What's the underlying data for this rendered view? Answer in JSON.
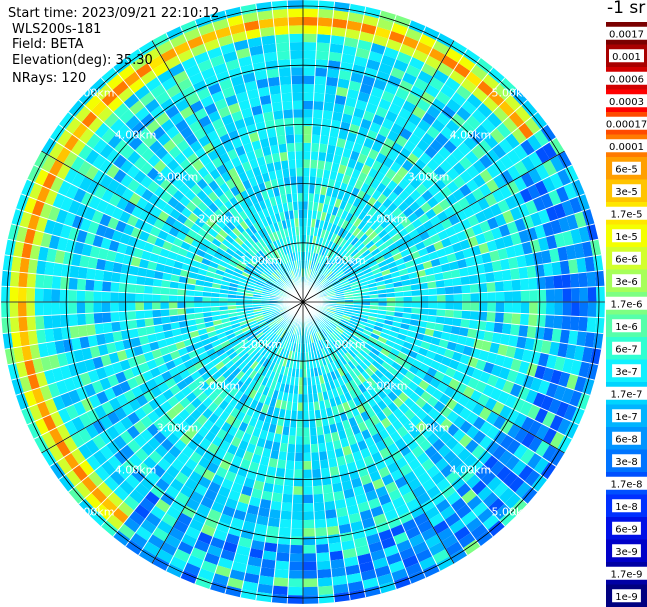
{
  "info": {
    "start_time": "Start time: 2023/09/21 22:10:12",
    "instrument": "WLS200s-181",
    "field": "Field: BETA",
    "elevation": "Elevation(deg): 35.30",
    "nrays": "NRays: 120"
  },
  "colorbar": {
    "title": "-1 sr",
    "levels": [
      {
        "label": "0.0017",
        "color": "#7a0000"
      },
      {
        "label": "0.001",
        "color": "#a80000"
      },
      {
        "label": "0.0006",
        "color": "#d20000"
      },
      {
        "label": "0.0003",
        "color": "#ff0000"
      },
      {
        "label": "0.00017",
        "color": "#ff4a00"
      },
      {
        "label": "0.0001",
        "color": "#ff7a00"
      },
      {
        "label": "6e-5",
        "color": "#ff9f00"
      },
      {
        "label": "3e-5",
        "color": "#ffc400"
      },
      {
        "label": "1.7e-5",
        "color": "#ffe600"
      },
      {
        "label": "1e-5",
        "color": "#f4ff00"
      },
      {
        "label": "6e-6",
        "color": "#d2ff2c"
      },
      {
        "label": "3e-6",
        "color": "#a6ff5a"
      },
      {
        "label": "1.7e-6",
        "color": "#7dff82"
      },
      {
        "label": "1e-6",
        "color": "#55ffaa"
      },
      {
        "label": "6e-7",
        "color": "#30ffd2"
      },
      {
        "label": "3e-7",
        "color": "#10f0ff"
      },
      {
        "label": "1.7e-7",
        "color": "#00d4ff"
      },
      {
        "label": "1e-7",
        "color": "#00b4ff"
      },
      {
        "label": "6e-8",
        "color": "#0094ff"
      },
      {
        "label": "3e-8",
        "color": "#0074ff"
      },
      {
        "label": "1.7e-8",
        "color": "#0050ff"
      },
      {
        "label": "1e-8",
        "color": "#0030ff"
      },
      {
        "label": "6e-9",
        "color": "#0010e6"
      },
      {
        "label": "3e-9",
        "color": "#0000c8"
      },
      {
        "label": "1.7e-9",
        "color": "#0000a4"
      },
      {
        "label": "1e-9",
        "color": "#000080"
      }
    ]
  },
  "chart_data": {
    "type": "heatmap",
    "projection": "polar (PPI)",
    "field": "BETA",
    "elevation_deg": 35.3,
    "n_rays": 120,
    "range_rings_km": [
      1,
      2,
      3,
      4,
      5
    ],
    "range_ring_labels": [
      "1.00km",
      "2.00km",
      "3.00km",
      "4.00km",
      "5.00km"
    ],
    "max_range_km": 5.1,
    "spokes_every_deg": 30,
    "colormap_levels": [
      "0.0017",
      "0.001",
      "0.0006",
      "0.0003",
      "0.00017",
      "0.0001",
      "6e-5",
      "3e-5",
      "1.7e-5",
      "1e-5",
      "6e-6",
      "3e-6",
      "1.7e-6",
      "1e-6",
      "6e-7",
      "3e-7",
      "1.7e-7",
      "1e-7",
      "6e-8",
      "3e-8",
      "1.7e-8",
      "1e-8",
      "6e-9",
      "3e-9",
      "1.7e-9",
      "1e-9"
    ],
    "pattern": "Mostly 1e-7 to 3e-7 (cyan) across the disc; band of 1e-5 to 1e-4 (yellow-orange) near 4.8-5.0 km on the northern and western side; 3e-8 to 1e-8 (blue) patches on the outer rim in the east and south."
  }
}
